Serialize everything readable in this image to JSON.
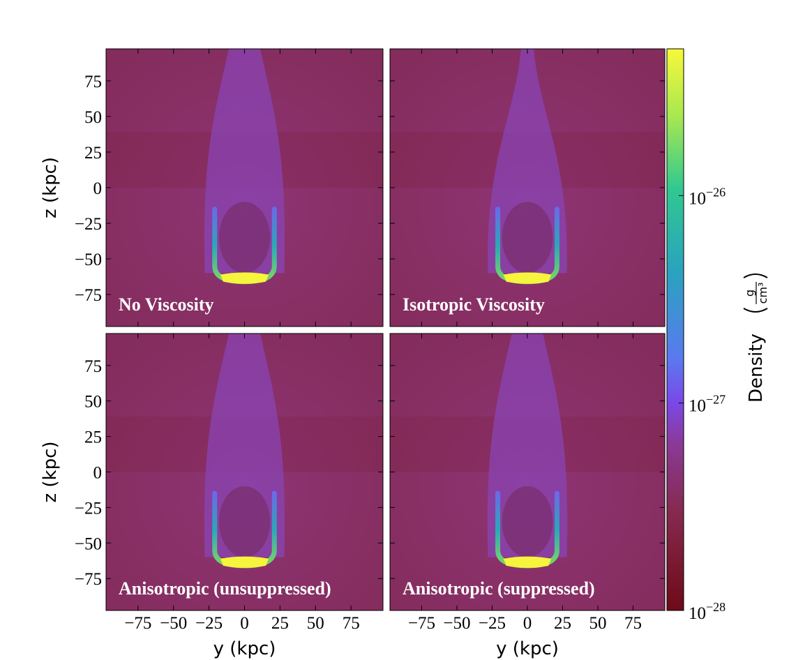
{
  "chart_data": {
    "type": "image-grid",
    "xlim": [
      -97.5,
      97.5
    ],
    "ylim": [
      -97.5,
      97.5
    ],
    "xticks": [
      {
        "value": -75,
        "label": "−75"
      },
      {
        "value": -50,
        "label": "−50"
      },
      {
        "value": -25,
        "label": "−25"
      },
      0,
      25,
      50,
      75
    ],
    "yticks": [
      {
        "value": -75,
        "label": "−75"
      },
      {
        "value": -50,
        "label": "−50"
      },
      {
        "value": -25,
        "label": "−25"
      },
      0,
      25,
      50,
      75
    ],
    "panels": [
      {
        "title": "No Viscosity",
        "ylabel": "z  (kpc)"
      },
      {
        "title": "Isotropic Viscosity"
      },
      {
        "title": "Anisotropic (unsuppressed)",
        "ylabel": "z  (kpc)",
        "xlabel": "y  (kpc)"
      },
      {
        "title": "Anisotropic (suppressed)",
        "xlabel": "y  (kpc)"
      }
    ],
    "colorbar": {
      "label": "Density",
      "unit_numerator": "g",
      "unit_denominator": "cm³",
      "scale": "log",
      "clim": [
        1e-28,
        5.1e-26
      ],
      "ticks": [
        {
          "value": 1e-28,
          "label": "10−28"
        },
        {
          "value": 1e-27,
          "label": "10−27"
        },
        {
          "value": 1e-26,
          "label": "10−26"
        }
      ]
    }
  }
}
